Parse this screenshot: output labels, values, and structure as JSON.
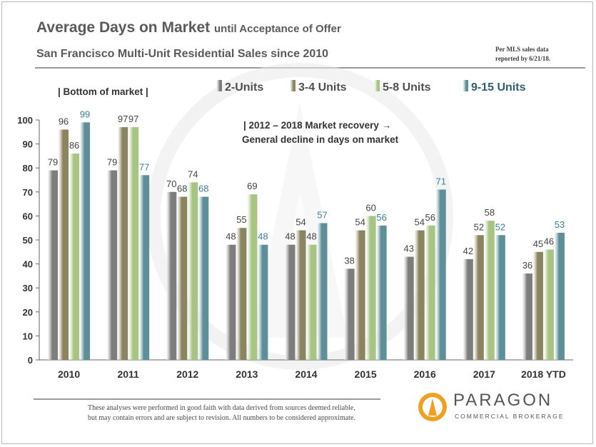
{
  "header": {
    "title": "Average Days on Market",
    "title_suffix": "until Acceptance of Offer",
    "subtitle": "San Francisco Multi-Unit  Residential Sales since 2010",
    "source_note_1": "Per MLS sales data",
    "source_note_2": "reported by 6/21/18."
  },
  "footer": {
    "disclaimer_1": "These analyses were performed in good faith with data derived from sources deemed reliable,",
    "disclaimer_2": "but may contain errors and are subject to revision. All numbers to be considered approximate.",
    "brand_name": "PARAGON",
    "brand_sub": "COMMERCIAL BROKERAGE"
  },
  "colors": {
    "series": [
      "#7d7d7d",
      "#8a8560",
      "#a7c483",
      "#5e8f99"
    ],
    "value_label_last": "#3d7fa3"
  },
  "chart_data": {
    "type": "bar",
    "categories": [
      "2010",
      "2011",
      "2012",
      "2013",
      "2014",
      "2015",
      "2016",
      "2017",
      "2018 YTD"
    ],
    "series": [
      {
        "name": "2-Units",
        "values": [
          79,
          79,
          70,
          48,
          48,
          38,
          43,
          42,
          36
        ]
      },
      {
        "name": "3-4 Units",
        "values": [
          96,
          97,
          68,
          55,
          54,
          54,
          54,
          52,
          45
        ]
      },
      {
        "name": "5-8 Units",
        "values": [
          86,
          97,
          74,
          69,
          48,
          60,
          56,
          58,
          46
        ]
      },
      {
        "name": "9-15 Units",
        "values": [
          99,
          77,
          68,
          48,
          57,
          56,
          71,
          52,
          53
        ]
      }
    ],
    "ylim": [
      0,
      100
    ],
    "yticks": [
      0,
      10,
      20,
      30,
      40,
      50,
      60,
      70,
      80,
      90,
      100
    ],
    "legend_position": "top",
    "grid": false,
    "annotations": [
      "| Bottom of market |",
      "|   2012 – 2018 Market recovery →",
      "General decline  in days on market"
    ]
  }
}
